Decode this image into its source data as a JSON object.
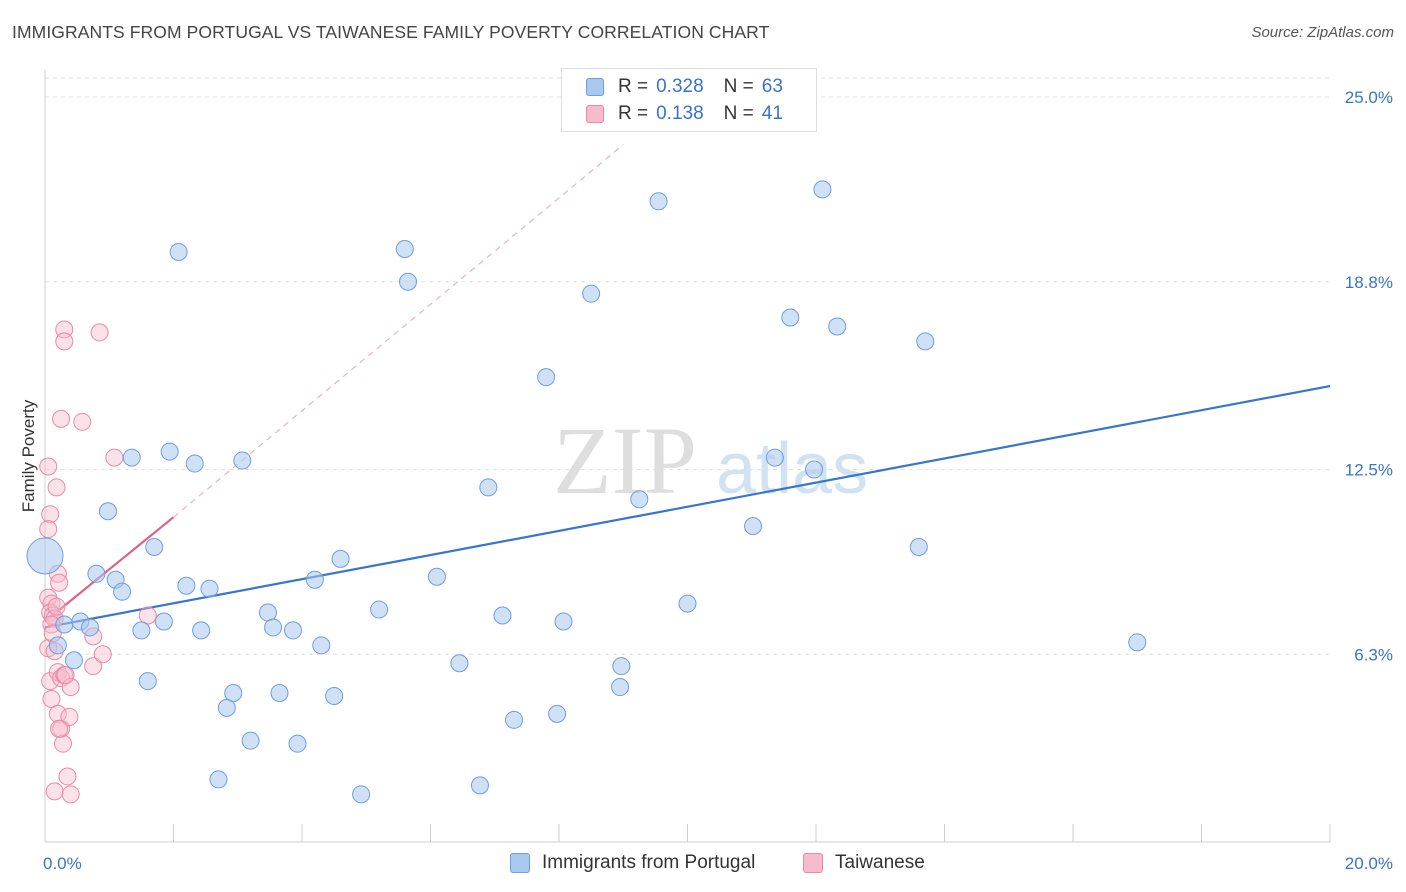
{
  "header": {
    "title": "IMMIGRANTS FROM PORTUGAL VS TAIWANESE FAMILY POVERTY CORRELATION CHART",
    "source": "Source: ZipAtlas.com"
  },
  "watermark": {
    "zip": "ZIP",
    "atlas": "atlas"
  },
  "legend": {
    "rows": [
      {
        "r_label": "R =",
        "r_value": "0.328",
        "n_label": "N =",
        "n_value": "63",
        "color": "#a9c8ef",
        "border": "#6d9ee0"
      },
      {
        "r_label": "R =",
        "r_value": "0.138",
        "n_label": "N =",
        "n_value": "41",
        "color": "#f7bccc",
        "border": "#e88aa6"
      }
    ]
  },
  "colors": {
    "blue_fill": "#a9c8ef",
    "blue_stroke": "#6d9ee0",
    "blue_line": "#3775d0",
    "pink_fill": "#f7bccc",
    "pink_stroke": "#e88aa6",
    "pink_line": "#e0608a",
    "axis_label": "#3b73c8",
    "grid": "#e2e2e2"
  },
  "chart_data": {
    "type": "scatter",
    "title": "IMMIGRANTS FROM PORTUGAL VS TAIWANESE FAMILY POVERTY CORRELATION CHART",
    "xlabel": "",
    "ylabel": "Family Poverty",
    "xlim": [
      0,
      20
    ],
    "ylim": [
      0,
      25.7
    ],
    "x_tick_labels": [
      "0.0%",
      "20.0%"
    ],
    "y_ticks": [
      6.3,
      12.5,
      18.8,
      25.0
    ],
    "y_tick_labels": [
      "6.3%",
      "12.5%",
      "18.8%",
      "25.0%"
    ],
    "grid": "horizontal dashed",
    "legend_position": "bottom",
    "series": [
      {
        "name": "Immigrants from Portugal",
        "r": 0.328,
        "n": 63,
        "trend": {
          "x": [
            0,
            20
          ],
          "y": [
            7.2,
            15.3
          ]
        },
        "points": [
          {
            "x": 0.0,
            "y": 9.6,
            "big": true
          },
          {
            "x": 0.2,
            "y": 6.6
          },
          {
            "x": 0.3,
            "y": 7.3
          },
          {
            "x": 0.45,
            "y": 6.1
          },
          {
            "x": 0.55,
            "y": 7.4
          },
          {
            "x": 0.7,
            "y": 7.2
          },
          {
            "x": 0.8,
            "y": 9.0
          },
          {
            "x": 0.98,
            "y": 11.1
          },
          {
            "x": 1.1,
            "y": 8.8
          },
          {
            "x": 1.2,
            "y": 8.4
          },
          {
            "x": 1.35,
            "y": 12.9
          },
          {
            "x": 1.5,
            "y": 7.1
          },
          {
            "x": 1.6,
            "y": 5.4
          },
          {
            "x": 1.7,
            "y": 9.9
          },
          {
            "x": 1.85,
            "y": 7.4
          },
          {
            "x": 1.94,
            "y": 13.1
          },
          {
            "x": 2.08,
            "y": 19.8
          },
          {
            "x": 2.2,
            "y": 8.6
          },
          {
            "x": 2.33,
            "y": 12.7
          },
          {
            "x": 2.43,
            "y": 7.1
          },
          {
            "x": 2.56,
            "y": 8.5
          },
          {
            "x": 2.7,
            "y": 2.1
          },
          {
            "x": 2.83,
            "y": 4.5
          },
          {
            "x": 2.93,
            "y": 5.0
          },
          {
            "x": 3.07,
            "y": 12.8
          },
          {
            "x": 3.2,
            "y": 3.4
          },
          {
            "x": 3.47,
            "y": 7.7
          },
          {
            "x": 3.55,
            "y": 7.2
          },
          {
            "x": 3.65,
            "y": 5.0
          },
          {
            "x": 3.86,
            "y": 7.1
          },
          {
            "x": 3.93,
            "y": 3.3
          },
          {
            "x": 4.2,
            "y": 8.8
          },
          {
            "x": 4.3,
            "y": 6.6
          },
          {
            "x": 4.5,
            "y": 4.9
          },
          {
            "x": 4.6,
            "y": 9.5
          },
          {
            "x": 4.92,
            "y": 1.6
          },
          {
            "x": 5.2,
            "y": 7.8
          },
          {
            "x": 5.6,
            "y": 19.9
          },
          {
            "x": 5.65,
            "y": 18.8
          },
          {
            "x": 6.1,
            "y": 8.9
          },
          {
            "x": 6.45,
            "y": 6.0
          },
          {
            "x": 6.77,
            "y": 1.9
          },
          {
            "x": 6.9,
            "y": 11.9
          },
          {
            "x": 7.12,
            "y": 7.6
          },
          {
            "x": 7.3,
            "y": 4.1
          },
          {
            "x": 7.8,
            "y": 15.6
          },
          {
            "x": 7.97,
            "y": 4.3
          },
          {
            "x": 8.07,
            "y": 7.4
          },
          {
            "x": 8.5,
            "y": 18.4
          },
          {
            "x": 8.97,
            "y": 5.9
          },
          {
            "x": 8.95,
            "y": 5.2
          },
          {
            "x": 9.25,
            "y": 11.5
          },
          {
            "x": 9.55,
            "y": 21.5
          },
          {
            "x": 10.0,
            "y": 8.0
          },
          {
            "x": 11.02,
            "y": 10.6
          },
          {
            "x": 11.36,
            "y": 12.9
          },
          {
            "x": 11.6,
            "y": 17.6
          },
          {
            "x": 11.97,
            "y": 12.5
          },
          {
            "x": 12.1,
            "y": 21.9
          },
          {
            "x": 12.33,
            "y": 17.3
          },
          {
            "x": 13.6,
            "y": 9.9
          },
          {
            "x": 13.7,
            "y": 16.8
          },
          {
            "x": 17.0,
            "y": 6.7
          }
        ]
      },
      {
        "name": "Taiwanese",
        "r": 0.138,
        "n": 41,
        "trend": {
          "x": [
            0,
            2.0
          ],
          "y": [
            7.4,
            10.9
          ]
        },
        "trend_dashed": {
          "x": [
            2.0,
            9.0
          ],
          "y": [
            10.9,
            23.4
          ]
        },
        "points": [
          {
            "x": 0.05,
            "y": 12.6
          },
          {
            "x": 0.08,
            "y": 11.0
          },
          {
            "x": 0.05,
            "y": 10.5
          },
          {
            "x": 0.05,
            "y": 8.2
          },
          {
            "x": 0.1,
            "y": 8.0
          },
          {
            "x": 0.08,
            "y": 7.7
          },
          {
            "x": 0.12,
            "y": 7.6
          },
          {
            "x": 0.15,
            "y": 7.5
          },
          {
            "x": 0.1,
            "y": 7.3
          },
          {
            "x": 0.05,
            "y": 6.5
          },
          {
            "x": 0.08,
            "y": 5.4
          },
          {
            "x": 0.1,
            "y": 4.8
          },
          {
            "x": 0.15,
            "y": 1.7
          },
          {
            "x": 0.18,
            "y": 11.9
          },
          {
            "x": 0.2,
            "y": 9.0
          },
          {
            "x": 0.22,
            "y": 8.7
          },
          {
            "x": 0.18,
            "y": 7.9
          },
          {
            "x": 0.15,
            "y": 6.4
          },
          {
            "x": 0.2,
            "y": 5.7
          },
          {
            "x": 0.25,
            "y": 5.5
          },
          {
            "x": 0.2,
            "y": 4.3
          },
          {
            "x": 0.25,
            "y": 3.8
          },
          {
            "x": 0.28,
            "y": 3.3
          },
          {
            "x": 0.25,
            "y": 14.2
          },
          {
            "x": 0.3,
            "y": 17.2
          },
          {
            "x": 0.3,
            "y": 16.8
          },
          {
            "x": 0.3,
            "y": 5.6
          },
          {
            "x": 0.35,
            "y": 2.2
          },
          {
            "x": 0.38,
            "y": 4.2
          },
          {
            "x": 0.4,
            "y": 5.2
          },
          {
            "x": 0.4,
            "y": 1.6
          },
          {
            "x": 0.58,
            "y": 14.1
          },
          {
            "x": 0.75,
            "y": 6.9
          },
          {
            "x": 0.75,
            "y": 5.9
          },
          {
            "x": 0.85,
            "y": 17.1
          },
          {
            "x": 0.9,
            "y": 6.3
          },
          {
            "x": 1.08,
            "y": 12.9
          },
          {
            "x": 1.6,
            "y": 7.6
          },
          {
            "x": 0.22,
            "y": 3.8
          },
          {
            "x": 0.12,
            "y": 7.0
          },
          {
            "x": 0.32,
            "y": 5.6
          }
        ]
      }
    ]
  }
}
